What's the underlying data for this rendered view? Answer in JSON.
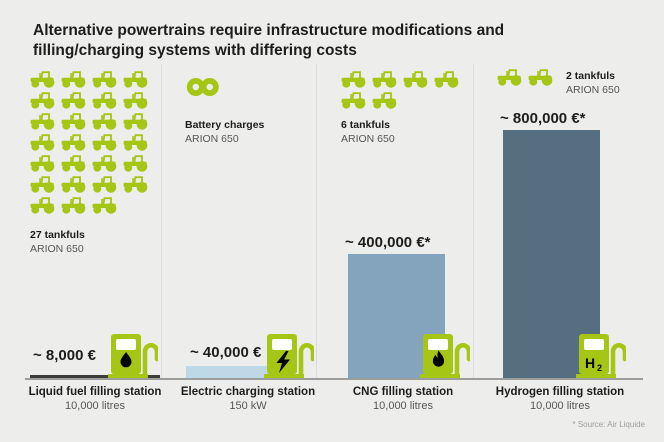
{
  "title": "Alternative powertrains require infrastructure modifications and filling/charging systems with differing costs",
  "source_note": "* Source: Air Liquide",
  "colors": {
    "background": "#EDEDEB",
    "accent_green": "#A6C616",
    "text_dark": "#1D1D1B",
    "text_gray": "#575756",
    "baseline_gray": "#9D9D9C",
    "bar_liquid": "#3C3C3B",
    "bar_electric": "#BED8E8",
    "bar_cng": "#84A3BC",
    "bar_hydrogen": "#566F80"
  },
  "chart_data": {
    "type": "bar",
    "title": "Alternative powertrains require infrastructure modifications and filling/charging systems with differing costs",
    "categories": [
      "Liquid fuel filling station",
      "Electric charging station",
      "CNG filling station",
      "Hydrogen filling station"
    ],
    "category_units": [
      "10,000 litres",
      "150 kW",
      "10,000 litres",
      "10,000 litres"
    ],
    "values": [
      8000,
      40000,
      400000,
      800000
    ],
    "value_labels": [
      "~ 8,000 €",
      "~ 40,000 €",
      "~ 400,000 €*",
      "~ 800,000 €*"
    ],
    "tankfuls_per_station": [
      "27 tankfuls ARION 650",
      "Battery charges ARION 650 (infinite)",
      "6 tankfuls ARION 650",
      "2 tankfuls ARION 650"
    ],
    "ylim": [
      0,
      800000
    ],
    "grid": false,
    "legend": false,
    "source": "* Source: Air Liquide"
  },
  "columns": [
    {
      "id": "liquid-fuel",
      "tankfuls_count": 27,
      "icon_label": "27 tankfuls",
      "model": "ARION 650",
      "price": "~ 8,000 €",
      "station": "Liquid fuel filling station",
      "capacity": "10,000 litres",
      "bar_color": "#3C3C3B",
      "pump_symbol": "oil-drop"
    },
    {
      "id": "electric",
      "tankfuls_count": 0,
      "icon_label": "Battery charges",
      "model": "ARION 650",
      "price": "~ 40,000 €",
      "station": "Electric charging station",
      "capacity": "150 kW",
      "bar_color": "#BED8E8",
      "pump_symbol": "lightning-bolt"
    },
    {
      "id": "cng",
      "tankfuls_count": 6,
      "icon_label": "6 tankfuls",
      "model": "ARION 650",
      "price": "~ 400,000 €*",
      "station": "CNG filling station",
      "capacity": "10,000 litres",
      "bar_color": "#84A3BC",
      "pump_symbol": "flame"
    },
    {
      "id": "hydrogen",
      "tankfuls_count": 2,
      "icon_label": "2 tankfuls",
      "model": "ARION 650",
      "price": "~ 800,000 €*",
      "station": "Hydrogen filling station",
      "capacity": "10,000 litres",
      "bar_color": "#566F80",
      "pump_symbol": "hydrogen-h2",
      "h2_main": "H",
      "h2_sub": "2"
    }
  ]
}
